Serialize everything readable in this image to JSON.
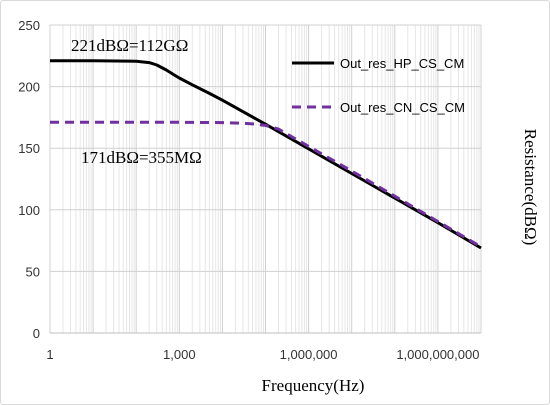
{
  "chart_data": {
    "type": "line",
    "xlabel": "Frequency(Hz)",
    "ylabel": "Resistance(dBΩ)",
    "x_scale": "log",
    "xlim": [
      1,
      10000000000
    ],
    "ylim": [
      0,
      250
    ],
    "x_ticks": [
      {
        "value": 1,
        "label": "1"
      },
      {
        "value": 1000,
        "label": "1,000"
      },
      {
        "value": 1000000,
        "label": "1,000,000"
      },
      {
        "value": 1000000000,
        "label": "1,000,000,000"
      }
    ],
    "y_ticks": [
      0,
      50,
      100,
      150,
      200,
      250
    ],
    "grid": {
      "major_horizontal": true,
      "minor_vertical_log": true
    },
    "legend_position": "top-right",
    "annotations": [
      {
        "text": "221dBΩ=112GΩ"
      },
      {
        "text": "171dBΩ=355MΩ"
      }
    ],
    "series": [
      {
        "name": "Out_res_HP_CS_CM",
        "color": "#000000",
        "style": "solid",
        "x": [
          1,
          10,
          100,
          200,
          300,
          500,
          800,
          1000,
          2000,
          5000,
          10000,
          100000,
          1000000,
          10000000,
          100000000,
          1000000000,
          10000000000
        ],
        "y": [
          221,
          221,
          220.5,
          219.5,
          217.5,
          213.5,
          209,
          207,
          201.5,
          194.5,
          189,
          169.5,
          149.5,
          129.5,
          109.5,
          89.5,
          69
        ]
      },
      {
        "name": "Out_res_CN_CS_CM",
        "color": "#7030a0",
        "style": "dashed",
        "x": [
          1,
          10,
          100,
          1000,
          10000,
          30000,
          60000,
          100000,
          200000,
          1000000,
          10000000,
          100000000,
          1000000000,
          10000000000
        ],
        "y": [
          171,
          171,
          171,
          171,
          170.8,
          170.3,
          169.5,
          168.5,
          165.5,
          151.5,
          131.5,
          111,
          90.5,
          70
        ]
      }
    ]
  }
}
